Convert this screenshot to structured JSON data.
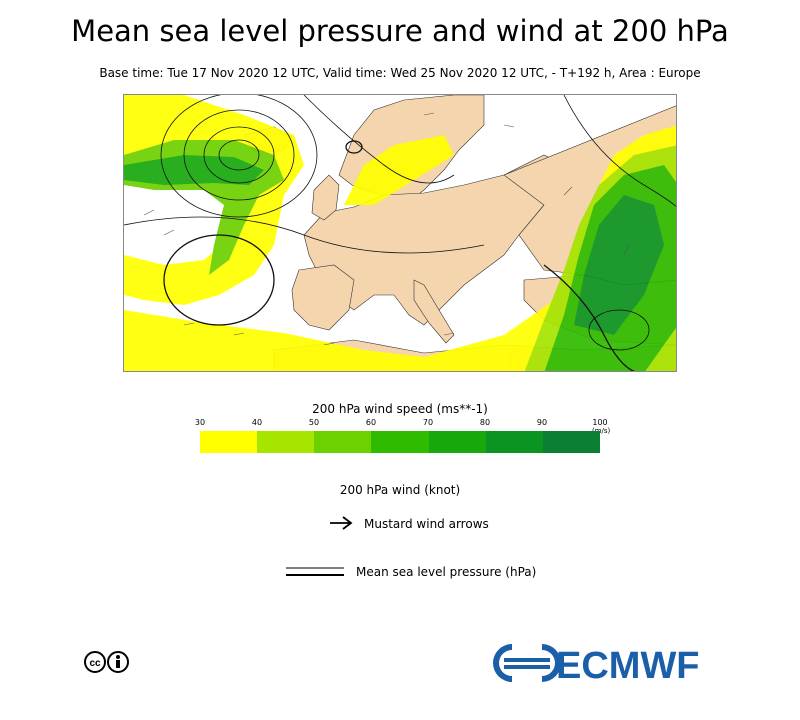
{
  "title": "Mean sea level pressure and wind at 200 hPa",
  "subtitle": "Base time: Tue 17 Nov 2020 12 UTC, Valid time: Wed 25 Nov 2020 12 UTC, - T+192 h, Area : Europe",
  "map": {
    "area": "Europe",
    "colors": {
      "sea": "#ffffff",
      "land": "#f5d5ae",
      "ws30": "#ffff00",
      "ws40": "#a6e500",
      "ws50": "#6dd000",
      "ws60": "#2fbb00",
      "ws70": "#16a80c",
      "ws80": "#0c9423",
      "ws90": "#0b7f33",
      "ws100": "#066a43"
    }
  },
  "legend": {
    "wind_speed_title": "200 hPa wind speed (ms**-1)",
    "ticks": [
      "30",
      "40",
      "50",
      "60",
      "70",
      "80",
      "90",
      "100"
    ],
    "unit": "(m/s)",
    "colors": [
      "#ffff00",
      "#a6e500",
      "#6dd000",
      "#2fbb00",
      "#16a80c",
      "#0c9423",
      "#0b7f33"
    ],
    "wind_title": "200 hPa wind (knot)",
    "arrow_label": "Mustard wind arrows",
    "msl_label": "Mean sea level pressure (hPa)"
  },
  "logo": {
    "text": "ECMWF",
    "color": "#1a5fa8"
  }
}
